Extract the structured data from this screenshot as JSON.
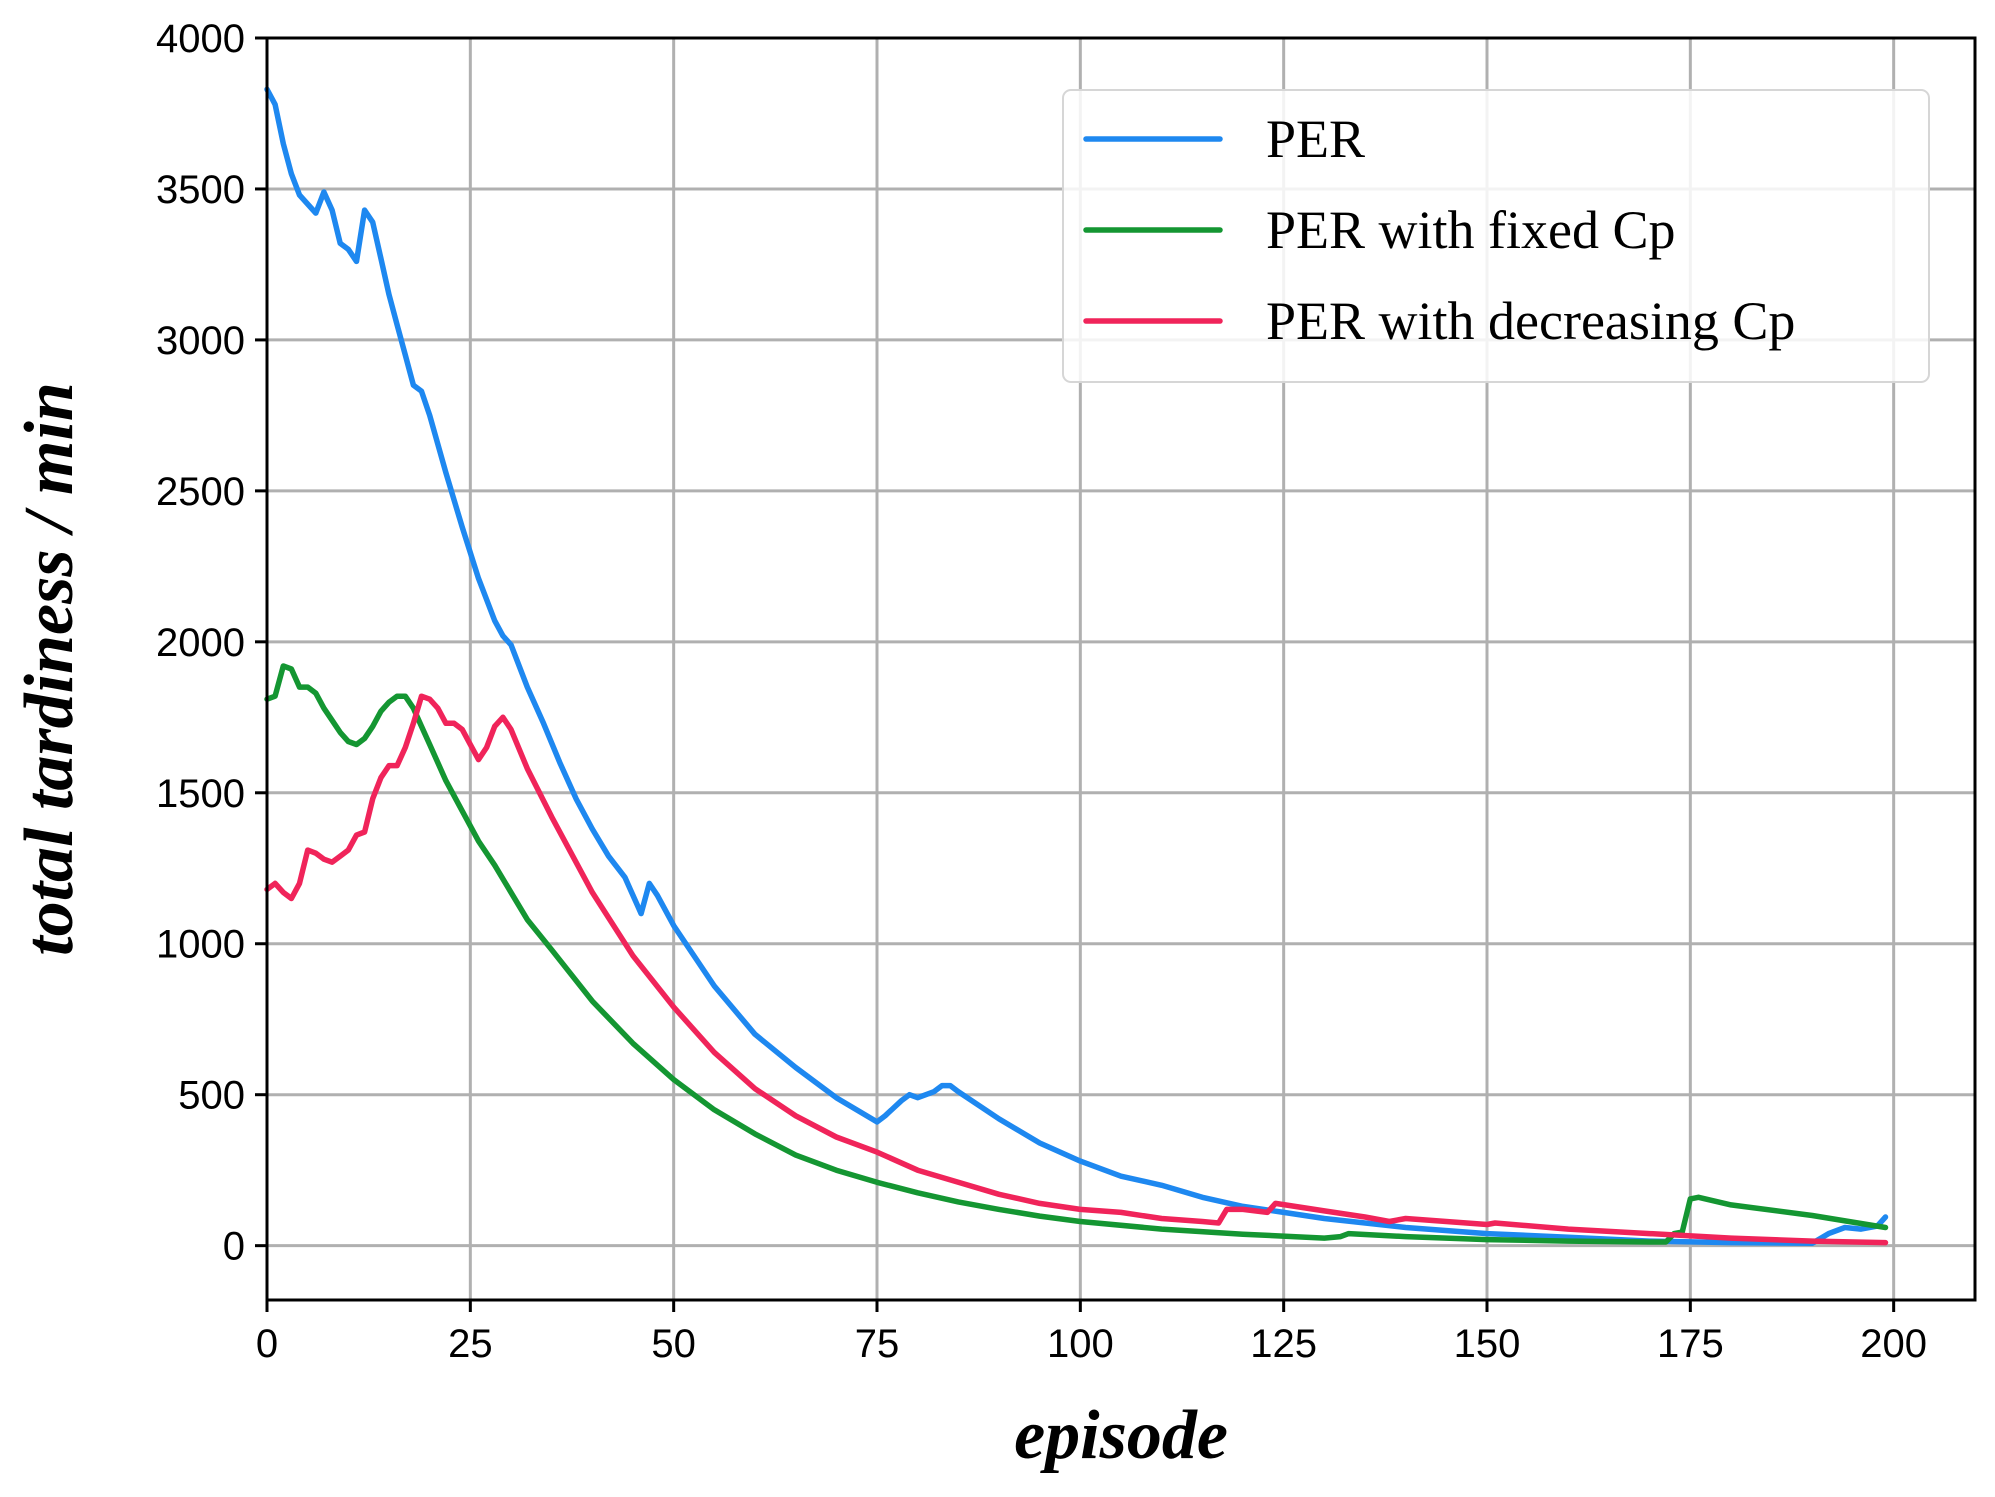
{
  "chart_data": {
    "type": "line",
    "title": "",
    "xlabel": "episode",
    "ylabel": "total tardiness / min",
    "xlim": [
      0,
      210
    ],
    "ylim": [
      -180,
      4000
    ],
    "xticks": [
      0,
      25,
      50,
      75,
      100,
      125,
      150,
      175,
      200
    ],
    "yticks": [
      0,
      500,
      1000,
      1500,
      2000,
      2500,
      3000,
      3500,
      4000
    ],
    "grid": true,
    "legend_position": "top-right",
    "series": [
      {
        "name": "PER",
        "color": "#1e88f0",
        "x": [
          0,
          1,
          2,
          3,
          4,
          5,
          6,
          7,
          8,
          9,
          10,
          11,
          12,
          13,
          14,
          15,
          16,
          17,
          18,
          19,
          20,
          22,
          24,
          26,
          28,
          29,
          30,
          32,
          34,
          36,
          38,
          40,
          42,
          44,
          46,
          47,
          48,
          50,
          55,
          60,
          65,
          70,
          75,
          76,
          78,
          79,
          80,
          82,
          83,
          84,
          85,
          90,
          95,
          100,
          105,
          110,
          115,
          120,
          125,
          130,
          140,
          150,
          160,
          170,
          180,
          190,
          192,
          194,
          196,
          198,
          199
        ],
        "values": [
          3830,
          3780,
          3650,
          3550,
          3480,
          3450,
          3420,
          3490,
          3430,
          3320,
          3300,
          3260,
          3430,
          3390,
          3270,
          3150,
          3050,
          2950,
          2850,
          2830,
          2750,
          2560,
          2380,
          2210,
          2070,
          2020,
          1990,
          1850,
          1730,
          1600,
          1480,
          1380,
          1290,
          1220,
          1100,
          1200,
          1160,
          1060,
          860,
          700,
          590,
          490,
          410,
          430,
          480,
          500,
          490,
          510,
          530,
          530,
          510,
          420,
          340,
          280,
          230,
          200,
          160,
          130,
          110,
          90,
          60,
          40,
          28,
          15,
          10,
          8,
          40,
          60,
          55,
          65,
          95
        ]
      },
      {
        "name": "PER with fixed Cp",
        "color": "#149632",
        "x": [
          0,
          1,
          2,
          3,
          4,
          5,
          6,
          7,
          8,
          9,
          10,
          11,
          12,
          13,
          14,
          15,
          16,
          17,
          18,
          19,
          20,
          22,
          24,
          26,
          28,
          30,
          32,
          35,
          40,
          45,
          50,
          55,
          60,
          65,
          70,
          75,
          80,
          85,
          90,
          95,
          100,
          110,
          120,
          130,
          132,
          133,
          140,
          150,
          160,
          170,
          172,
          173,
          174,
          175,
          176,
          180,
          190,
          199
        ],
        "values": [
          1810,
          1820,
          1920,
          1910,
          1850,
          1850,
          1830,
          1780,
          1740,
          1700,
          1670,
          1660,
          1680,
          1720,
          1770,
          1800,
          1820,
          1820,
          1780,
          1720,
          1660,
          1540,
          1440,
          1340,
          1260,
          1170,
          1080,
          980,
          810,
          670,
          550,
          450,
          370,
          300,
          250,
          210,
          175,
          145,
          120,
          98,
          80,
          55,
          38,
          25,
          30,
          40,
          30,
          20,
          15,
          12,
          12,
          40,
          45,
          155,
          160,
          135,
          100,
          60
        ]
      },
      {
        "name": "PER with decreasing Cp",
        "color": "#f0245a",
        "x": [
          0,
          1,
          2,
          3,
          4,
          5,
          6,
          7,
          8,
          9,
          10,
          11,
          12,
          13,
          14,
          15,
          16,
          17,
          18,
          19,
          20,
          21,
          22,
          23,
          24,
          25,
          26,
          27,
          28,
          29,
          30,
          32,
          35,
          40,
          45,
          50,
          55,
          60,
          65,
          70,
          75,
          80,
          85,
          90,
          95,
          100,
          105,
          110,
          115,
          117,
          118,
          120,
          123,
          124,
          130,
          135,
          138,
          140,
          145,
          150,
          151,
          160,
          170,
          180,
          190,
          199
        ],
        "values": [
          1180,
          1200,
          1170,
          1150,
          1200,
          1310,
          1300,
          1280,
          1270,
          1290,
          1310,
          1360,
          1370,
          1480,
          1550,
          1590,
          1590,
          1650,
          1730,
          1820,
          1810,
          1780,
          1730,
          1730,
          1710,
          1660,
          1610,
          1650,
          1720,
          1750,
          1710,
          1580,
          1420,
          1170,
          960,
          790,
          640,
          520,
          430,
          360,
          310,
          250,
          210,
          170,
          140,
          120,
          110,
          90,
          80,
          75,
          120,
          120,
          110,
          140,
          115,
          95,
          80,
          90,
          80,
          70,
          75,
          55,
          40,
          25,
          15,
          10
        ]
      }
    ]
  }
}
